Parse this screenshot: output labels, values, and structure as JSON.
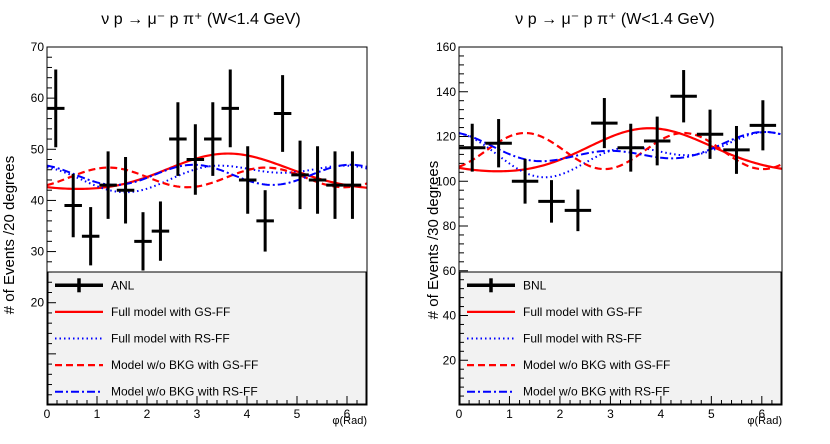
{
  "chart_data": [
    {
      "type": "scatter",
      "title": "ν p → μ⁻ p π⁺ (W<1.4 GeV)",
      "xlabel": "φ(Rad)",
      "ylabel": "# of Events /20 degrees",
      "xlim": [
        0,
        6.4
      ],
      "ylim": [
        0,
        70
      ],
      "xticks": [
        0,
        1,
        2,
        3,
        4,
        5,
        6
      ],
      "yticks": [
        20,
        30,
        40,
        50,
        60,
        70
      ],
      "legend_position": "bottom (shaded box over plot)",
      "data": {
        "name": "ANL",
        "xerr": 0.175,
        "x": [
          0.175,
          0.524,
          0.873,
          1.222,
          1.571,
          1.92,
          2.269,
          2.618,
          2.967,
          3.316,
          3.665,
          4.014,
          4.363,
          4.712,
          5.061,
          5.411,
          5.76,
          6.109
        ],
        "y": [
          58,
          39,
          33,
          43,
          42,
          32,
          34,
          52,
          48,
          52,
          58,
          44,
          36,
          57,
          45,
          44,
          43,
          43
        ],
        "yerr": [
          7.6,
          6.2,
          5.7,
          6.6,
          6.5,
          5.7,
          5.8,
          7.2,
          6.9,
          7.2,
          7.6,
          6.6,
          6.0,
          7.5,
          6.7,
          6.6,
          6.6,
          6.6
        ]
      },
      "series": [
        {
          "name": "Full model with GS-FF",
          "style": "solid",
          "color": "#ff0000",
          "model": {
            "c": 45.3,
            "a": [
              -3.0,
              0.3
            ],
            "b": [
              -1.7,
              0.3
            ]
          }
        },
        {
          "name": "Full model with RS-FF",
          "style": "dotted",
          "color": "#0000ff",
          "model": {
            "c": 45.0,
            "a": [
              0.0,
              1.5
            ],
            "b": [
              -1.9,
              0.0
            ]
          }
        },
        {
          "name": "Model w/o BKG with GS-FF",
          "style": "dashed",
          "color": "#ff0000",
          "model": {
            "c": 44.5,
            "a": [
              0.0,
              -1.5
            ],
            "b": [
              0.0,
              1.2
            ]
          }
        },
        {
          "name": "Model w/o BKG with RS-FF",
          "style": "dashdot",
          "color": "#0000ff",
          "model": {
            "c": 45.0,
            "a": [
              0.0,
              1.8
            ],
            "b": [
              0.0,
              -0.8
            ]
          }
        }
      ]
    },
    {
      "type": "scatter",
      "title": "ν p → μ⁻ p π⁺ (W<1.4 GeV)",
      "xlabel": "φ(Rad)",
      "ylabel": "# of Events /30 degrees",
      "xlim": [
        0,
        6.4
      ],
      "ylim": [
        0,
        160
      ],
      "xticks": [
        0,
        1,
        2,
        3,
        4,
        5,
        6
      ],
      "yticks": [
        20,
        40,
        60,
        80,
        100,
        120,
        140,
        160
      ],
      "legend_position": "bottom (shaded box over plot)",
      "data": {
        "name": "BNL",
        "xerr": 0.262,
        "x": [
          0.262,
          0.785,
          1.309,
          1.833,
          2.356,
          2.88,
          3.403,
          3.927,
          4.451,
          4.974,
          5.498,
          6.021
        ],
        "y": [
          115,
          117,
          100,
          91,
          87,
          126,
          115,
          118,
          138,
          121,
          114,
          125
        ],
        "yerr": [
          10.7,
          10.8,
          10.0,
          9.5,
          9.3,
          11.2,
          10.7,
          10.9,
          11.7,
          11.0,
          10.7,
          11.2
        ]
      },
      "series": [
        {
          "name": "Full model with GS-FF",
          "style": "solid",
          "color": "#ff0000",
          "model": {
            "c": 113.0,
            "a": [
              -7.5,
              0.5
            ],
            "b": [
              -6.0,
              1.0
            ]
          }
        },
        {
          "name": "Full model with RS-FF",
          "style": "dotted",
          "color": "#0000ff",
          "model": {
            "c": 112.5,
            "a": [
              3.5,
              5.5
            ],
            "b": [
              -5.0,
              0.0
            ]
          }
        },
        {
          "name": "Model w/o BKG with GS-FF",
          "style": "dashed",
          "color": "#ff0000",
          "model": {
            "c": 113.5,
            "a": [
              0.0,
              -7.0
            ],
            "b": [
              0.0,
              4.0
            ]
          }
        },
        {
          "name": "Model w/o BKG with RS-FF",
          "style": "dashdot",
          "color": "#0000ff",
          "model": {
            "c": 114.0,
            "a": [
              4.0,
              3.5
            ],
            "b": [
              -1.5,
              -1.5
            ]
          }
        }
      ]
    }
  ]
}
